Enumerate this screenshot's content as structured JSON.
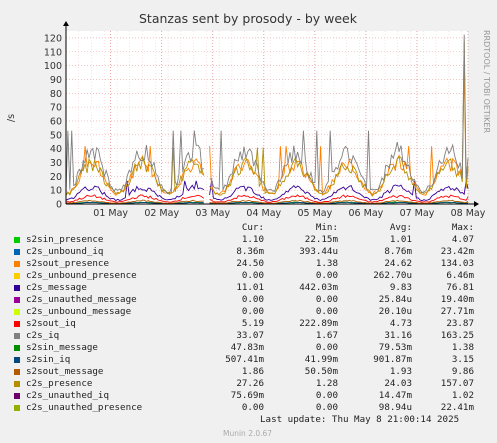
{
  "title": "Stanzas sent by prosody - by week",
  "ylabel": "/s",
  "watermark": "RRDTOOL / TOBI OETIKER",
  "footer": "Munin 2.0.67",
  "last_update": "Last update: Thu May  8 21:00:14 2025",
  "legend_headers": {
    "cur": "Cur:",
    "min": "Min:",
    "avg": "Avg:",
    "max": "Max:"
  },
  "chart_data": {
    "type": "line",
    "title": "Stanzas sent by prosody - by week",
    "ylabel": "/s",
    "xlabel": "",
    "ylim": [
      0,
      125
    ],
    "yticks": [
      0,
      10,
      20,
      30,
      40,
      50,
      60,
      70,
      80,
      90,
      100,
      110,
      120
    ],
    "x_tick_labels": [
      "01 May",
      "02 May",
      "03 May",
      "04 May",
      "05 May",
      "06 May",
      "07 May",
      "08 May"
    ],
    "grid": true,
    "series": [
      {
        "name": "s2sin_presence",
        "color": "#00cc00",
        "cur": "1.10",
        "min": "22.15m",
        "avg": "1.01",
        "max": "4.07"
      },
      {
        "name": "c2s_unbound_iq",
        "color": "#0066b3",
        "cur": "8.36m",
        "min": "393.44u",
        "avg": "8.76m",
        "max": "23.42m"
      },
      {
        "name": "s2sout_presence",
        "color": "#ff8000",
        "cur": "24.50",
        "min": "1.38",
        "avg": "24.62",
        "max": "134.03"
      },
      {
        "name": "c2s_unbound_presence",
        "color": "#ffcc00",
        "cur": "0.00",
        "min": "0.00",
        "avg": "262.70u",
        "max": "6.46m"
      },
      {
        "name": "c2s_message",
        "color": "#330099",
        "cur": "11.01",
        "min": "442.03m",
        "avg": "9.83",
        "max": "76.81"
      },
      {
        "name": "c2s_unauthed_message",
        "color": "#990099",
        "cur": "0.00",
        "min": "0.00",
        "avg": "25.84u",
        "max": "19.40m"
      },
      {
        "name": "c2s_unbound_message",
        "color": "#ccff00",
        "cur": "0.00",
        "min": "0.00",
        "avg": "20.10u",
        "max": "27.71m"
      },
      {
        "name": "s2sout_iq",
        "color": "#ff0000",
        "cur": "5.19",
        "min": "222.89m",
        "avg": "4.73",
        "max": "23.87"
      },
      {
        "name": "c2s_iq",
        "color": "#808080",
        "cur": "33.07",
        "min": "1.67",
        "avg": "31.16",
        "max": "163.25"
      },
      {
        "name": "s2sin_message",
        "color": "#008f00",
        "cur": "47.83m",
        "min": "0.00",
        "avg": "79.53m",
        "max": "1.38"
      },
      {
        "name": "s2sin_iq",
        "color": "#00487d",
        "cur": "507.41m",
        "min": "41.99m",
        "avg": "901.87m",
        "max": "3.15"
      },
      {
        "name": "s2sout_message",
        "color": "#b35a00",
        "cur": "1.86",
        "min": "50.50m",
        "avg": "1.93",
        "max": "9.86"
      },
      {
        "name": "c2s_presence",
        "color": "#b38f00",
        "cur": "27.26",
        "min": "1.28",
        "avg": "24.03",
        "max": "157.07"
      },
      {
        "name": "c2s_unauthed_iq",
        "color": "#6b006b",
        "cur": "75.69m",
        "min": "0.00",
        "avg": "14.47m",
        "max": "1.02"
      },
      {
        "name": "c2s_unauthed_presence",
        "color": "#8fb300",
        "cur": "0.00",
        "min": "0.00",
        "avg": "98.94u",
        "max": "22.41m"
      }
    ]
  }
}
